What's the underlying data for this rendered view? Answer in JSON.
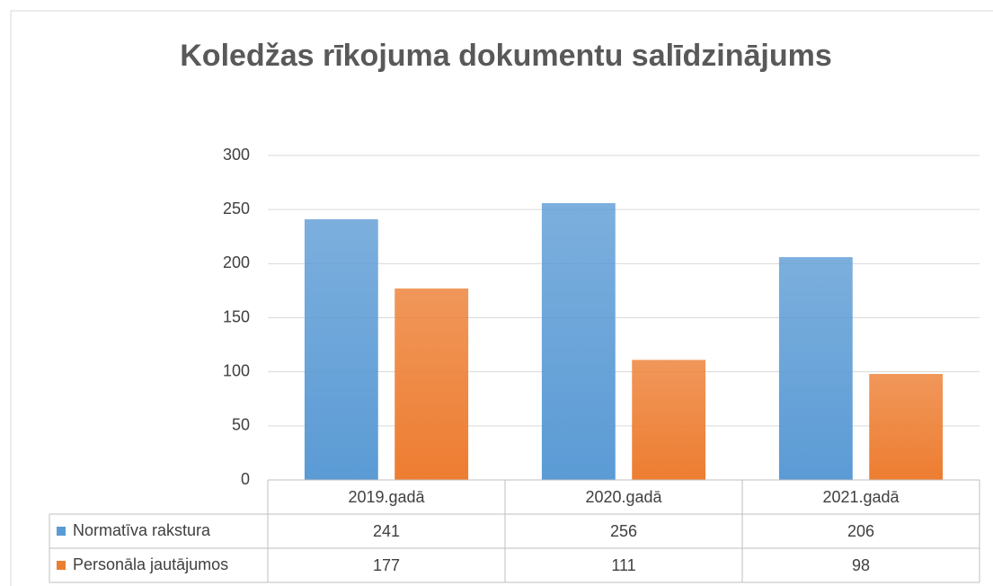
{
  "chart_data": {
    "type": "bar",
    "title": "Koledžas rīkojuma dokumentu salīdzinājums",
    "categories": [
      "2019.gadā",
      "2020.gadā",
      "2021.gadā"
    ],
    "series": [
      {
        "name": "Normatīva rakstura",
        "color": "#5b9bd5",
        "values": [
          241,
          256,
          206
        ]
      },
      {
        "name": "Personāla jautājumos",
        "color": "#ed7d31",
        "values": [
          177,
          111,
          98
        ]
      }
    ],
    "ylim": [
      0,
      300
    ],
    "yticks": [
      0,
      50,
      100,
      150,
      200,
      250,
      300
    ],
    "grid": true,
    "data_table": true
  }
}
